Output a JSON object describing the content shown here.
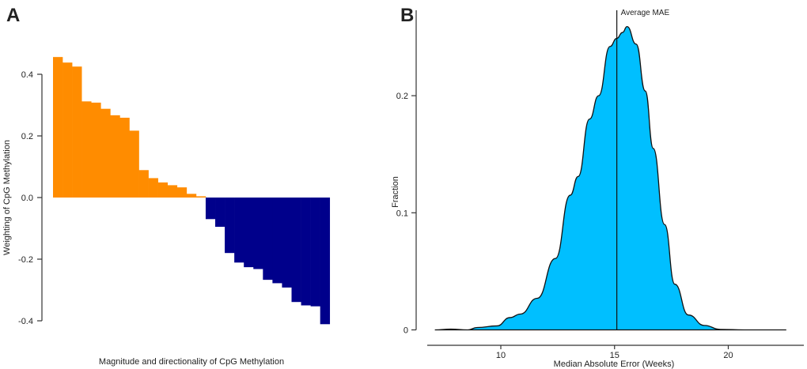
{
  "chart_data": [
    {
      "panel_label": "A",
      "type": "bar",
      "xlabel": "Magnitude and directionality of CpG Methylation",
      "ylabel": "Weighting of CpG Methylation",
      "ylim": [
        -0.42,
        0.46
      ],
      "yticks": [
        -0.4,
        -0.2,
        0.0,
        0.2,
        0.4
      ],
      "ytick_labels": [
        "-0.4",
        "-0.2",
        "0.0",
        "0.2",
        "0.4"
      ],
      "grid": false,
      "colors": {
        "positive": "#FF8C00",
        "negative": "#00008B"
      },
      "values": [
        0.456,
        0.438,
        0.425,
        0.312,
        0.308,
        0.288,
        0.267,
        0.259,
        0.217,
        0.089,
        0.063,
        0.049,
        0.04,
        0.033,
        0.012,
        0.004,
        -0.07,
        -0.095,
        -0.18,
        -0.211,
        -0.226,
        -0.232,
        -0.267,
        -0.278,
        -0.292,
        -0.339,
        -0.35,
        -0.353,
        -0.411
      ]
    },
    {
      "panel_label": "B",
      "type": "area",
      "xlabel": "Median Absolute Error (Weeks)",
      "ylabel": "Fraction",
      "xlim": [
        7,
        22.6
      ],
      "ylim": [
        0,
        0.27
      ],
      "xticks": [
        10,
        15,
        20
      ],
      "xtick_labels": [
        "10",
        "15",
        "20"
      ],
      "yticks": [
        0,
        0.1,
        0.2
      ],
      "ytick_labels": [
        "0",
        "0.1",
        "0.2"
      ],
      "grid": false,
      "fill_color": "#00BFFF",
      "x": [
        7.1,
        7.8,
        8.55,
        8.96,
        9.83,
        10.4,
        10.86,
        11.6,
        12.4,
        13.05,
        13.4,
        13.9,
        14.3,
        14.8,
        15.1,
        15.35,
        15.55,
        15.95,
        16.35,
        16.7,
        17.2,
        17.65,
        18.25,
        18.95,
        19.65,
        20.7,
        22.55
      ],
      "y": [
        0,
        0.0007,
        0,
        0.002,
        0.0034,
        0.0105,
        0.0135,
        0.027,
        0.061,
        0.115,
        0.131,
        0.18,
        0.2,
        0.242,
        0.249,
        0.254,
        0.259,
        0.244,
        0.204,
        0.155,
        0.09,
        0.039,
        0.0127,
        0.0038,
        0.0004,
        0,
        0
      ],
      "annotation": {
        "text": "Average MAE",
        "x": 15.1
      }
    }
  ]
}
